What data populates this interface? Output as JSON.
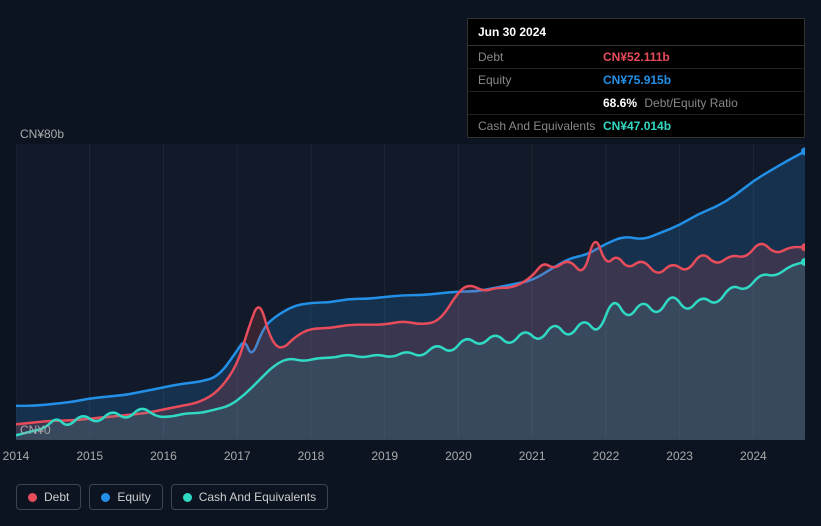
{
  "tooltip": {
    "date": "Jun 30 2024",
    "rows": [
      {
        "label": "Debt",
        "value": "CN¥52.111b",
        "color": "#e74c5a"
      },
      {
        "label": "Equity",
        "value": "CN¥75.915b",
        "color": "#2390e8"
      },
      {
        "label": "",
        "value": "68.6%",
        "extra": "Debt/Equity Ratio",
        "color": "#ffffff"
      },
      {
        "label": "Cash And Equivalents",
        "value": "CN¥47.014b",
        "color": "#2fd9c4"
      }
    ]
  },
  "chart": {
    "type": "area",
    "background_color": "#121a29",
    "page_background": "#0d1421",
    "grid_color": "#1e2736",
    "axis_line_color": "#3a4556",
    "label_color": "#aaaaaa",
    "label_fontsize": 12,
    "y": {
      "min": 0,
      "max": 80,
      "ticks": [
        {
          "v": 0,
          "label": "CN¥0"
        },
        {
          "v": 80,
          "label": "CN¥80b"
        }
      ]
    },
    "x": {
      "min": 2014,
      "max": 2024.7,
      "ticks": [
        2014,
        2015,
        2016,
        2017,
        2018,
        2019,
        2020,
        2021,
        2022,
        2023,
        2024
      ]
    },
    "series": [
      {
        "name": "Equity",
        "color": "#2390e8",
        "fill_opacity": 0.2,
        "line_width": 2.5,
        "marker_end": true,
        "data": [
          [
            2014.0,
            9
          ],
          [
            2014.25,
            9
          ],
          [
            2014.5,
            9.5
          ],
          [
            2014.75,
            10
          ],
          [
            2015.0,
            11
          ],
          [
            2015.25,
            11.5
          ],
          [
            2015.5,
            12
          ],
          [
            2015.75,
            13
          ],
          [
            2016.0,
            14
          ],
          [
            2016.25,
            15
          ],
          [
            2016.5,
            15.5
          ],
          [
            2016.75,
            17
          ],
          [
            2017.0,
            24
          ],
          [
            2017.1,
            27
          ],
          [
            2017.2,
            22
          ],
          [
            2017.35,
            30
          ],
          [
            2017.5,
            33
          ],
          [
            2017.75,
            36
          ],
          [
            2018.0,
            37
          ],
          [
            2018.25,
            37
          ],
          [
            2018.5,
            38
          ],
          [
            2018.75,
            38
          ],
          [
            2019.0,
            38.5
          ],
          [
            2019.25,
            39
          ],
          [
            2019.5,
            39
          ],
          [
            2019.75,
            39.5
          ],
          [
            2020.0,
            40
          ],
          [
            2020.25,
            40
          ],
          [
            2020.5,
            41
          ],
          [
            2020.75,
            42
          ],
          [
            2021.0,
            43
          ],
          [
            2021.25,
            46
          ],
          [
            2021.5,
            49
          ],
          [
            2021.75,
            50
          ],
          [
            2022.0,
            53
          ],
          [
            2022.25,
            55
          ],
          [
            2022.5,
            54
          ],
          [
            2022.75,
            56
          ],
          [
            2023.0,
            58
          ],
          [
            2023.25,
            61
          ],
          [
            2023.5,
            63
          ],
          [
            2023.75,
            66
          ],
          [
            2024.0,
            70
          ],
          [
            2024.25,
            73
          ],
          [
            2024.5,
            75.9
          ],
          [
            2024.7,
            78
          ]
        ]
      },
      {
        "name": "Debt",
        "color": "#e74c5a",
        "fill_opacity": 0.18,
        "line_width": 2.5,
        "marker_end": true,
        "data": [
          [
            2014.0,
            4
          ],
          [
            2014.25,
            4.5
          ],
          [
            2014.5,
            5
          ],
          [
            2014.75,
            5
          ],
          [
            2015.0,
            5.5
          ],
          [
            2015.25,
            6
          ],
          [
            2015.5,
            6.5
          ],
          [
            2015.75,
            7
          ],
          [
            2016.0,
            8
          ],
          [
            2016.25,
            9
          ],
          [
            2016.5,
            10
          ],
          [
            2016.75,
            13
          ],
          [
            2017.0,
            20
          ],
          [
            2017.15,
            30
          ],
          [
            2017.3,
            38
          ],
          [
            2017.45,
            27
          ],
          [
            2017.6,
            24
          ],
          [
            2017.8,
            28
          ],
          [
            2018.0,
            30
          ],
          [
            2018.25,
            30
          ],
          [
            2018.5,
            31
          ],
          [
            2018.75,
            31
          ],
          [
            2019.0,
            31
          ],
          [
            2019.25,
            32
          ],
          [
            2019.5,
            31
          ],
          [
            2019.75,
            32
          ],
          [
            2020.0,
            40
          ],
          [
            2020.15,
            42
          ],
          [
            2020.35,
            40
          ],
          [
            2020.5,
            41
          ],
          [
            2020.75,
            41
          ],
          [
            2021.0,
            44
          ],
          [
            2021.15,
            48
          ],
          [
            2021.3,
            46
          ],
          [
            2021.5,
            49
          ],
          [
            2021.7,
            44
          ],
          [
            2021.85,
            56
          ],
          [
            2022.0,
            47
          ],
          [
            2022.15,
            50
          ],
          [
            2022.3,
            46
          ],
          [
            2022.5,
            49
          ],
          [
            2022.7,
            44
          ],
          [
            2022.9,
            48
          ],
          [
            2023.1,
            45
          ],
          [
            2023.3,
            51
          ],
          [
            2023.5,
            47
          ],
          [
            2023.7,
            50
          ],
          [
            2023.9,
            49
          ],
          [
            2024.1,
            54
          ],
          [
            2024.3,
            50
          ],
          [
            2024.5,
            52.1
          ],
          [
            2024.7,
            52
          ]
        ]
      },
      {
        "name": "Cash And Equivalents",
        "color": "#2fd9c4",
        "fill_opacity": 0.12,
        "line_width": 2.5,
        "marker_end": true,
        "data": [
          [
            2014.0,
            1
          ],
          [
            2014.2,
            2
          ],
          [
            2014.4,
            3
          ],
          [
            2014.55,
            6
          ],
          [
            2014.7,
            3
          ],
          [
            2014.9,
            7
          ],
          [
            2015.1,
            4
          ],
          [
            2015.3,
            8
          ],
          [
            2015.5,
            5
          ],
          [
            2015.7,
            9
          ],
          [
            2015.9,
            6
          ],
          [
            2016.1,
            6
          ],
          [
            2016.3,
            7
          ],
          [
            2016.5,
            7
          ],
          [
            2016.7,
            8
          ],
          [
            2016.9,
            9
          ],
          [
            2017.1,
            12
          ],
          [
            2017.3,
            16
          ],
          [
            2017.5,
            20
          ],
          [
            2017.7,
            22
          ],
          [
            2017.9,
            21
          ],
          [
            2018.1,
            22
          ],
          [
            2018.3,
            22
          ],
          [
            2018.5,
            23
          ],
          [
            2018.7,
            22
          ],
          [
            2018.9,
            23
          ],
          [
            2019.1,
            22
          ],
          [
            2019.3,
            24
          ],
          [
            2019.5,
            22
          ],
          [
            2019.7,
            26
          ],
          [
            2019.9,
            23
          ],
          [
            2020.1,
            28
          ],
          [
            2020.3,
            25
          ],
          [
            2020.5,
            29
          ],
          [
            2020.7,
            25
          ],
          [
            2020.9,
            30
          ],
          [
            2021.1,
            26
          ],
          [
            2021.3,
            32
          ],
          [
            2021.5,
            27
          ],
          [
            2021.7,
            33
          ],
          [
            2021.9,
            28
          ],
          [
            2022.1,
            39
          ],
          [
            2022.3,
            32
          ],
          [
            2022.5,
            38
          ],
          [
            2022.7,
            33
          ],
          [
            2022.9,
            40
          ],
          [
            2023.1,
            34
          ],
          [
            2023.3,
            39
          ],
          [
            2023.5,
            36
          ],
          [
            2023.7,
            42
          ],
          [
            2023.9,
            40
          ],
          [
            2024.1,
            45
          ],
          [
            2024.3,
            44
          ],
          [
            2024.5,
            47
          ],
          [
            2024.7,
            48
          ]
        ]
      }
    ]
  },
  "legend": {
    "items": [
      {
        "label": "Debt",
        "color": "#e74c5a"
      },
      {
        "label": "Equity",
        "color": "#2390e8"
      },
      {
        "label": "Cash And Equivalents",
        "color": "#2fd9c4"
      }
    ],
    "border_color": "#3a4556",
    "text_color": "#cccccc",
    "fontsize": 12
  }
}
